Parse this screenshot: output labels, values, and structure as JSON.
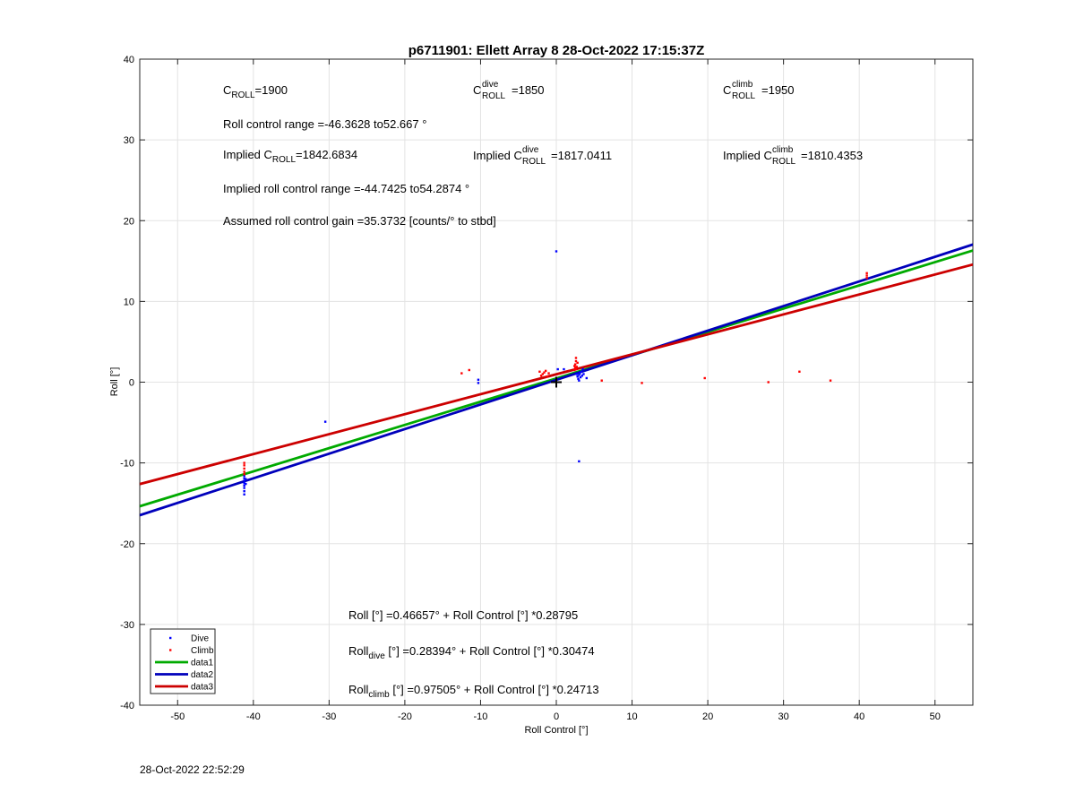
{
  "chart_data": {
    "type": "scatter",
    "title": "p6711901: Ellett Array 8 28-Oct-2022 17:15:37Z",
    "xlabel": "Roll Control [°]",
    "ylabel": "Roll [°]",
    "xlim": [
      -55,
      55
    ],
    "ylim": [
      -40,
      40
    ],
    "xticks": [
      "-50",
      "-40",
      "-30",
      "-20",
      "-10",
      "0",
      "10",
      "20",
      "30",
      "40",
      "50"
    ],
    "yticks": [
      "40",
      "30",
      "20",
      "10",
      "0",
      "-10",
      "-20",
      "-30",
      "-40"
    ],
    "grid": true,
    "legend_placement": "bottom-left",
    "series": [
      {
        "name": "Dive",
        "color": "#0000ff",
        "marker": "dot",
        "points": [
          [
            -41.2,
            -11.6
          ],
          [
            -41.2,
            -11.9
          ],
          [
            -41.2,
            -12.2
          ],
          [
            -41.2,
            -12.5
          ],
          [
            -41.2,
            -12.8
          ],
          [
            -41.2,
            -13.1
          ],
          [
            -41.2,
            -13.5
          ],
          [
            -41.2,
            -13.9
          ],
          [
            -41.0,
            -12.0
          ],
          [
            -41.0,
            -12.6
          ],
          [
            -30.5,
            -4.9
          ],
          [
            -10.3,
            0.3
          ],
          [
            -10.3,
            -0.1
          ],
          [
            0.0,
            16.2
          ],
          [
            0.2,
            1.6
          ],
          [
            1.0,
            1.6
          ],
          [
            2.8,
            0.7
          ],
          [
            2.9,
            0.4
          ],
          [
            3.0,
            0.9
          ],
          [
            3.1,
            1.1
          ],
          [
            3.2,
            0.6
          ],
          [
            3.3,
            1.3
          ],
          [
            3.4,
            0.8
          ],
          [
            3.5,
            1.6
          ],
          [
            3.0,
            0.2
          ],
          [
            4.0,
            0.5
          ],
          [
            3.0,
            -9.8
          ],
          [
            2.7,
            1.0
          ],
          [
            3.6,
            1.0
          ]
        ]
      },
      {
        "name": "Climb",
        "color": "#ff0000",
        "marker": "dot",
        "points": [
          [
            -41.2,
            -10.0
          ],
          [
            -41.2,
            -10.3
          ],
          [
            -41.2,
            -10.7
          ],
          [
            -41.2,
            -11.1
          ],
          [
            -41.2,
            -11.4
          ],
          [
            -12.5,
            1.1
          ],
          [
            -11.5,
            1.5
          ],
          [
            -2.0,
            0.8
          ],
          [
            -1.8,
            1.0
          ],
          [
            -1.6,
            1.2
          ],
          [
            -1.4,
            1.4
          ],
          [
            -1.2,
            0.7
          ],
          [
            -1.0,
            1.1
          ],
          [
            -2.2,
            1.3
          ],
          [
            2.4,
            1.5
          ],
          [
            2.5,
            1.8
          ],
          [
            2.5,
            2.2
          ],
          [
            2.6,
            2.6
          ],
          [
            2.6,
            3.0
          ],
          [
            2.7,
            1.9
          ],
          [
            2.8,
            2.4
          ],
          [
            2.4,
            2.0
          ],
          [
            2.6,
            1.6
          ],
          [
            6.0,
            0.2
          ],
          [
            11.3,
            -0.1
          ],
          [
            19.6,
            0.5
          ],
          [
            28.0,
            0.0
          ],
          [
            32.1,
            1.3
          ],
          [
            36.2,
            0.2
          ],
          [
            41.0,
            12.9
          ],
          [
            41.0,
            13.2
          ],
          [
            41.0,
            13.5
          ]
        ]
      },
      {
        "name": "data1",
        "color": "#00aa00",
        "marker": "line",
        "points": [
          [
            -55,
            -15.37
          ],
          [
            55,
            16.304
          ]
        ]
      },
      {
        "name": "data2",
        "color": "#0000bb",
        "marker": "line",
        "points": [
          [
            -55,
            -16.477
          ],
          [
            55,
            17.045
          ]
        ]
      },
      {
        "name": "data3",
        "color": "#cc0000",
        "marker": "line",
        "points": [
          [
            -55,
            -12.617
          ],
          [
            55,
            14.567
          ]
        ]
      }
    ],
    "origin_marker": [
      0,
      0
    ],
    "annotations": {
      "c_roll_main": "C",
      "c_roll_sub": "ROLL",
      "c_roll_val": "=1900",
      "c_dive_main": "C",
      "c_dive_sup": "dive",
      "c_dive_sub": "ROLL",
      "c_dive_val": "=1850",
      "c_climb_main": "C",
      "c_climb_sup": "climb",
      "c_climb_sub": "ROLL",
      "c_climb_val": "=1950",
      "range": "Roll control range =-46.3628 to52.667 °",
      "implied_main": "Implied C",
      "implied_sub": "ROLL",
      "implied_val": "=1842.6834",
      "implied_dive_main": "Implied C",
      "implied_dive_sup": "dive",
      "implied_dive_sub": "ROLL",
      "implied_dive_val": "=1817.0411",
      "implied_climb_main": "Implied C",
      "implied_climb_sup": "climb",
      "implied_climb_sub": "ROLL",
      "implied_climb_val": "=1810.4353",
      "implied_range": "Implied roll control range =-44.7425 to54.2874 °",
      "gain": "Assumed roll control gain =35.3732 [counts/° to stbd]",
      "eq_all": "Roll [°] =0.46657° + Roll Control [°] *0.28795",
      "eq_dive_main": "Roll",
      "eq_dive_sub": "dive",
      "eq_dive_rest": " [°] =0.28394° + Roll Control [°] *0.30474",
      "eq_climb_main": "Roll",
      "eq_climb_sub": "climb",
      "eq_climb_rest": " [°] =0.97505° + Roll Control [°] *0.24713"
    }
  },
  "footer": {
    "timestamp": "28-Oct-2022 22:52:29"
  }
}
